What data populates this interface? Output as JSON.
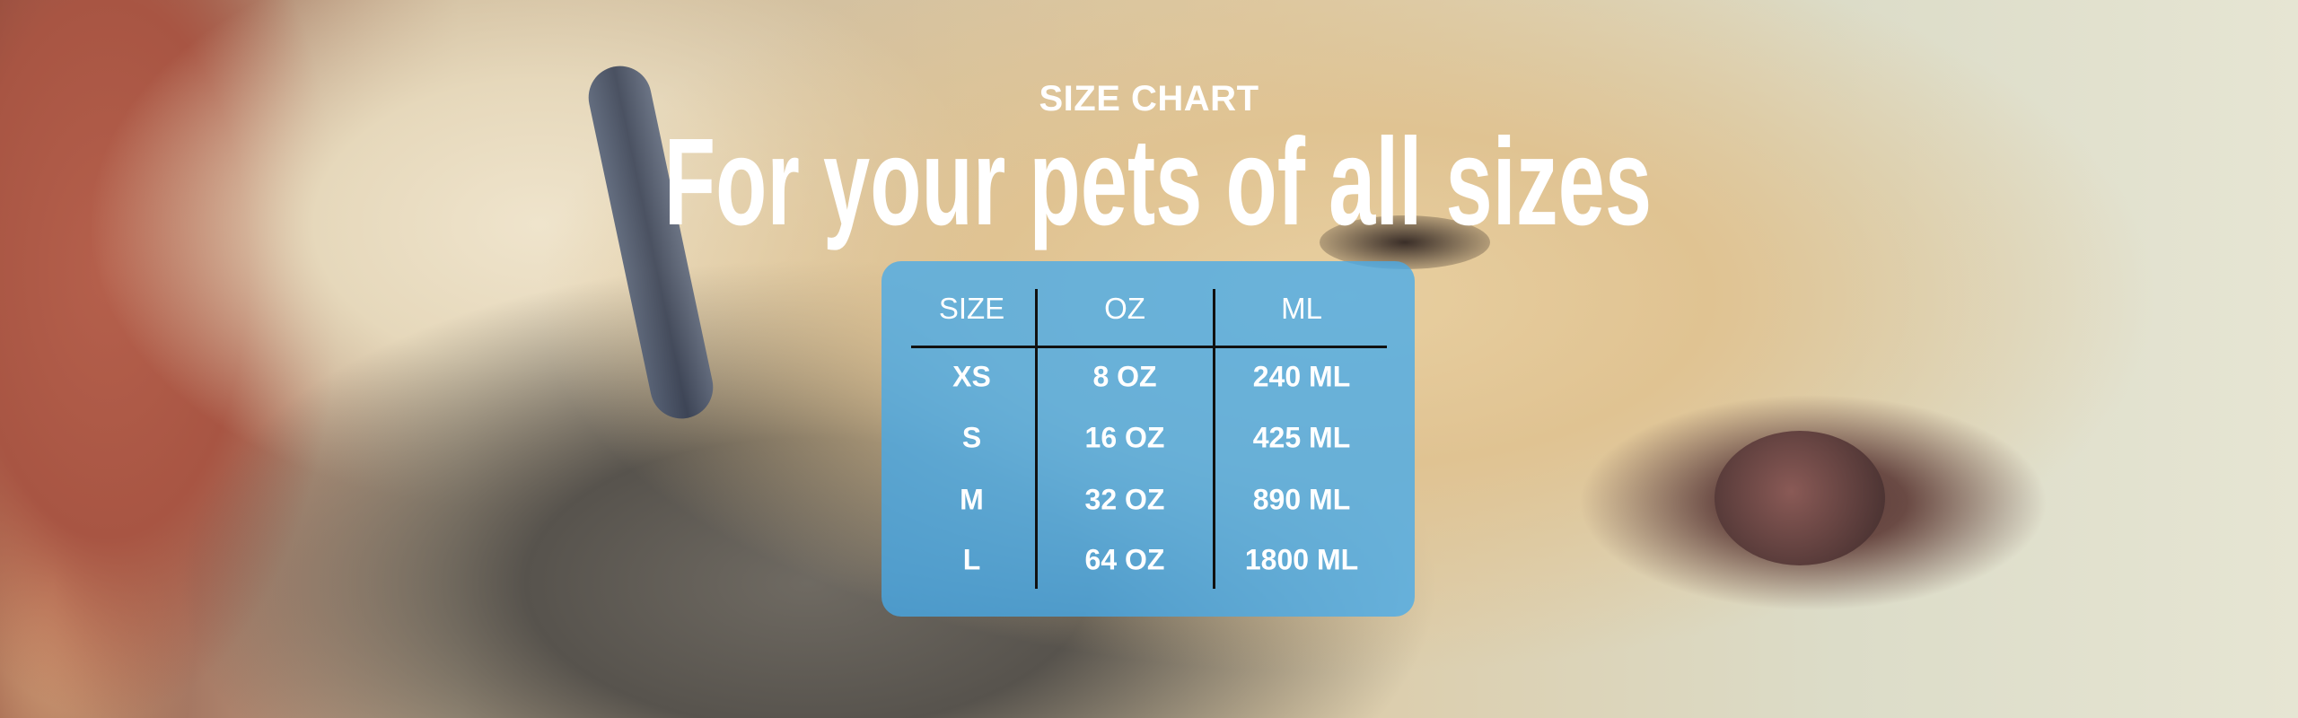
{
  "kicker": "SIZE CHART",
  "title": "For your pets of all sizes",
  "table": {
    "headers": [
      "SIZE",
      "OZ",
      "ML"
    ],
    "rows": [
      [
        "XS",
        "8 OZ",
        "240 ML"
      ],
      [
        "S",
        "16 OZ",
        "425 ML"
      ],
      [
        "M",
        "32 OZ",
        "890 ML"
      ],
      [
        "L",
        "64 OZ",
        "1800 ML"
      ]
    ]
  },
  "colors": {
    "panel": "#46aaeb",
    "text": "#ffffff",
    "rule": "#111111"
  }
}
